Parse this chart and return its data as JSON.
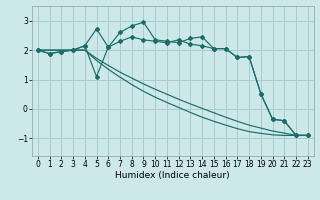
{
  "title": "",
  "xlabel": "Humidex (Indice chaleur)",
  "bg_color": "#cce8e8",
  "grid_color": "#aacccc",
  "line_color": "#1a6e6a",
  "xlim": [
    -0.5,
    23.5
  ],
  "ylim": [
    -1.6,
    3.5
  ],
  "xticks": [
    0,
    1,
    2,
    3,
    4,
    5,
    6,
    7,
    8,
    9,
    10,
    11,
    12,
    13,
    14,
    15,
    16,
    17,
    18,
    19,
    20,
    21,
    22,
    23
  ],
  "yticks": [
    -1,
    0,
    1,
    2,
    3
  ],
  "series_top": [
    2.0,
    1.88,
    1.95,
    2.0,
    2.15,
    2.72,
    2.1,
    2.6,
    2.82,
    2.95,
    2.35,
    2.3,
    2.25,
    2.4,
    2.45,
    2.05,
    2.05,
    1.75,
    1.78,
    0.52,
    -0.35,
    -0.4,
    -0.9,
    -0.9
  ],
  "series_mid": [
    2.0,
    1.88,
    1.95,
    2.0,
    2.15,
    1.1,
    2.1,
    2.3,
    2.45,
    2.35,
    2.3,
    2.25,
    2.35,
    2.2,
    2.15,
    2.05,
    2.05,
    1.75,
    1.78,
    0.52,
    -0.35,
    -0.4,
    -0.9,
    -0.9
  ],
  "series_lin1": [
    2.0,
    2.0,
    2.0,
    2.0,
    2.0,
    1.72,
    1.48,
    1.25,
    1.05,
    0.85,
    0.67,
    0.5,
    0.33,
    0.17,
    0.02,
    -0.13,
    -0.28,
    -0.42,
    -0.55,
    -0.65,
    -0.75,
    -0.82,
    -0.9,
    -0.9
  ],
  "series_lin2": [
    2.0,
    2.0,
    2.0,
    2.0,
    2.0,
    1.65,
    1.35,
    1.08,
    0.83,
    0.6,
    0.4,
    0.22,
    0.05,
    -0.12,
    -0.28,
    -0.42,
    -0.55,
    -0.67,
    -0.77,
    -0.83,
    -0.88,
    -0.9,
    -0.9,
    -0.9
  ]
}
